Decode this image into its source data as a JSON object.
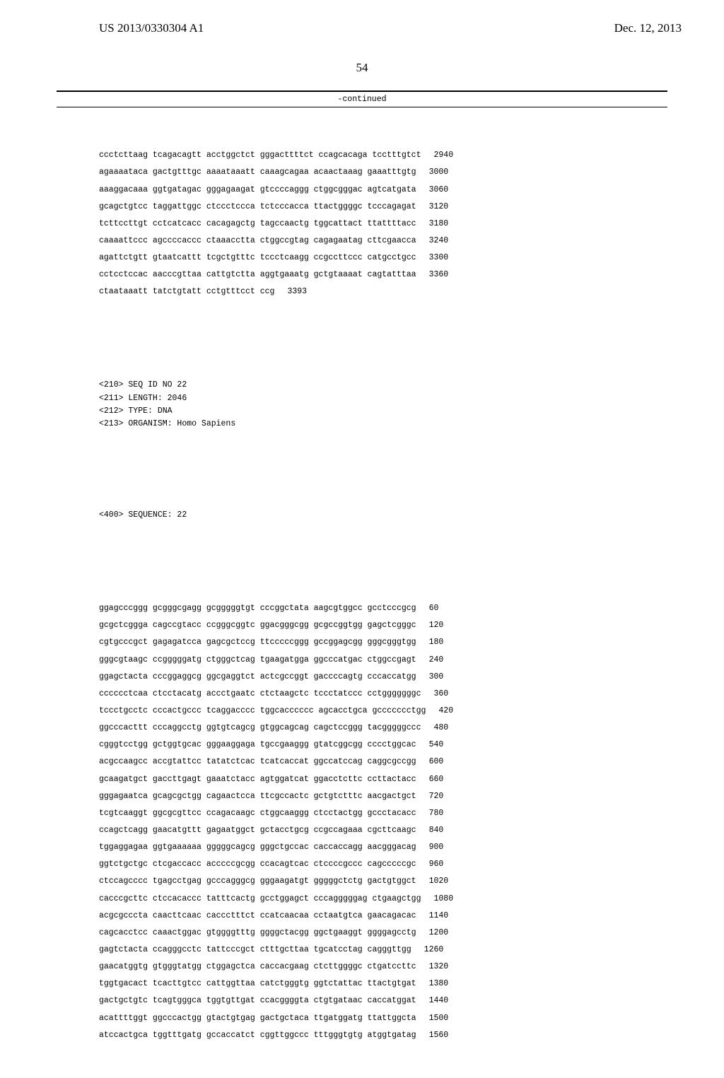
{
  "header": {
    "pub_number": "US 2013/0330304 A1",
    "pub_date": "Dec. 12, 2013",
    "page_number": "54",
    "continued_label": "-continued"
  },
  "sequence_block_1": {
    "rows": [
      {
        "seq": "ccctcttaag tcagacagtt acctggctct gggacttttct ccagcacaga tcctttgtct",
        "pos": "2940"
      },
      {
        "seq": "agaaaataca gactgtttgc aaaataaatt caaagcagaa acaactaaag gaaatttgtg",
        "pos": "3000"
      },
      {
        "seq": "aaaggacaaa ggtgatagac gggagaagat gtccccaggg ctggcgggac agtcatgata",
        "pos": "3060"
      },
      {
        "seq": "gcagctgtcc taggattggc ctccctccca tctcccacca ttactggggc tcccagagat",
        "pos": "3120"
      },
      {
        "seq": "tcttccttgt cctcatcacc cacagagctg tagccaactg tggcattact ttattttacc",
        "pos": "3180"
      },
      {
        "seq": "caaaattccc agccccaccc ctaaacctta ctggccgtag cagagaatag cttcgaacca",
        "pos": "3240"
      },
      {
        "seq": "agattctgtt gtaatcattt tcgctgtttc tccctcaagg ccgccttccc catgcctgcc",
        "pos": "3300"
      },
      {
        "seq": "cctcctccac aacccgttaa cattgtctta aggtgaaatg gctgtaaaat cagtatttaa",
        "pos": "3360"
      },
      {
        "seq": "ctaataaatt tatctgtatt cctgtttcct ccg",
        "pos": "3393"
      }
    ]
  },
  "sequence_header_2": {
    "lines": [
      "<210> SEQ ID NO 22",
      "<211> LENGTH: 2046",
      "<212> TYPE: DNA",
      "<213> ORGANISM: Homo Sapiens"
    ],
    "sequence_label": "<400> SEQUENCE: 22"
  },
  "sequence_block_2": {
    "rows": [
      {
        "seq": "ggagcccggg gcgggcgagg gcgggggtgt cccggctata aagcgtggcc gcctcccgcg",
        "pos": "60"
      },
      {
        "seq": "gcgctcggga cagccgtacc ccgggcggtc ggacgggcgg gcgccggtgg gagctcgggc",
        "pos": "120"
      },
      {
        "seq": "cgtgcccgct gagagatcca gagcgctccg ttcccccggg gccggagcgg gggcgggtgg",
        "pos": "180"
      },
      {
        "seq": "gggcgtaagc ccgggggatg ctgggctcag tgaagatgga ggcccatgac ctggccgagt",
        "pos": "240"
      },
      {
        "seq": "ggagctacta cccggaggcg ggcgaggtct actcgccggt gaccccagtg cccaccatgg",
        "pos": "300"
      },
      {
        "seq": "cccccctcaa ctcctacatg accctgaatc ctctaagctc tccctatccc cctgggggggc",
        "pos": "360"
      },
      {
        "seq": "tccctgcctc cccactgccc tcaggacccc tggcacccccc agcacctgca gccccccctgg",
        "pos": "420"
      },
      {
        "seq": "ggcccacttt cccaggcctg ggtgtcagcg gtggcagcag cagctccggg tacgggggccc",
        "pos": "480"
      },
      {
        "seq": "cgggtcctgg gctggtgcac gggaaggaga tgccgaaggg gtatcggcgg cccctggcac",
        "pos": "540"
      },
      {
        "seq": "acgccaagcc accgtattcc tatatctcac tcatcaccat ggccatccag caggcgccgg",
        "pos": "600"
      },
      {
        "seq": "gcaagatgct gaccttgagt gaaatctacc agtggatcat ggacctcttc ccttactacc",
        "pos": "660"
      },
      {
        "seq": "gggagaatca gcagcgctgg cagaactcca ttcgccactc gctgtctttc aacgactgct",
        "pos": "720"
      },
      {
        "seq": "tcgtcaaggt ggcgcgttcc ccagacaagc ctggcaaggg ctcctactgg gccctacacc",
        "pos": "780"
      },
      {
        "seq": "ccagctcagg gaacatgttt gagaatggct gctacctgcg ccgccagaaa cgcttcaagc",
        "pos": "840"
      },
      {
        "seq": "tggaggagaa ggtgaaaaaa gggggcagcg gggctgccac caccaccagg aacgggacag",
        "pos": "900"
      },
      {
        "seq": "ggtctgctgc ctcgaccacc acccccgcgg ccacagtcac ctccccgccc cagcccccgc",
        "pos": "960"
      },
      {
        "seq": "ctccagcccc tgagcctgag gcccagggcg gggaagatgt gggggctctg gactgtggct",
        "pos": "1020"
      },
      {
        "seq": "cacccgcttc ctccacaccc tatttcactg gcctggagct cccagggggag ctgaagctgg",
        "pos": "1080"
      },
      {
        "seq": "acgcgcccta caacttcaac caccctttct ccatcaacaa cctaatgtca gaacagacac",
        "pos": "1140"
      },
      {
        "seq": "cagcacctcc caaactggac gtggggtttg ggggctacgg ggctgaaggt ggggagcctg",
        "pos": "1200"
      },
      {
        "seq": "gagtctacta ccagggcctc tattcccgct ctttgcttaa tgcatcctag cagggttgg",
        "pos": "1260"
      },
      {
        "seq": "gaacatggtg gtgggtatgg ctggagctca caccacgaag ctcttggggc ctgatccttc",
        "pos": "1320"
      },
      {
        "seq": "tggtgacact tcacttgtcc cattggttaa catctgggtg ggtctattac ttactgtgat",
        "pos": "1380"
      },
      {
        "seq": "gactgctgtc tcagtgggca tggtgttgat ccacggggta ctgtgataac caccatggat",
        "pos": "1440"
      },
      {
        "seq": "acattttggt ggcccactgg gtactgtgag gactgctaca ttgatggatg ttattggcta",
        "pos": "1500"
      },
      {
        "seq": "atccactgca tggtttgatg gccaccatct cggttggccc tttgggtgtg atggtgatag",
        "pos": "1560"
      }
    ]
  }
}
